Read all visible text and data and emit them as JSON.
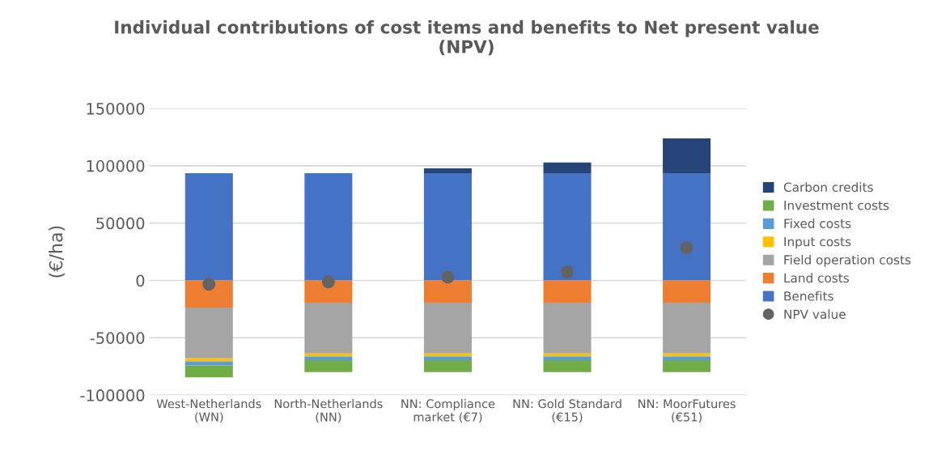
{
  "chart_data": {
    "type": "bar",
    "title": "Individual contributions of cost items and benefits to Net present value\n(NPV)",
    "ylabel": "(€/ha)",
    "categories": [
      "West-Netherlands\n(WN)",
      "North-Netherlands\n(NN)",
      "NN: Compliance\nmarket (€7)",
      "NN: Gold Standard\n(€15)",
      "NN: MoorFutures\n(€51)"
    ],
    "stacked": true,
    "series": [
      {
        "name": "Benefits",
        "color": "#4472c4",
        "values": [
          93500,
          93500,
          93500,
          93500,
          93500
        ]
      },
      {
        "name": "Land costs",
        "color": "#ed7d31",
        "values": [
          -23600,
          -19400,
          -19400,
          -19400,
          -19400
        ]
      },
      {
        "name": "Field operation costs",
        "color": "#a5a5a5",
        "values": [
          -44300,
          -44300,
          -44300,
          -44300,
          -44300
        ]
      },
      {
        "name": "Input costs",
        "color": "#ffc000",
        "values": [
          -2600,
          -2600,
          -2600,
          -2600,
          -2600
        ]
      },
      {
        "name": "Fixed costs",
        "color": "#5b9bd5",
        "values": [
          -3600,
          -3200,
          -3200,
          -3200,
          -3200
        ]
      },
      {
        "name": "Investment costs",
        "color": "#70ad47",
        "values": [
          -10400,
          -10400,
          -10400,
          -10400,
          -10400
        ]
      },
      {
        "name": "Carbon credits",
        "color": "#264478",
        "values": [
          null,
          null,
          4200,
          9400,
          30400
        ]
      },
      {
        "name": "NPV value",
        "type": "scatter",
        "color": "#636363",
        "x": [
          "West-Netherlands\n(WN)",
          "North-Netherlands\n(NN)",
          "NN: Compliance\nmarket (€7)",
          "NN: Gold Standard\n(€15)",
          "NN: MoorFutures\n(€51)"
        ],
        "values": [
          -3200,
          -1300,
          2900,
          7400,
          28500
        ]
      }
    ],
    "ylim": [
      -100000,
      150000
    ],
    "yticks": [
      -100000,
      -50000,
      0,
      50000,
      100000,
      150000
    ],
    "grid": "y",
    "legend": "right",
    "marker": "circle"
  }
}
